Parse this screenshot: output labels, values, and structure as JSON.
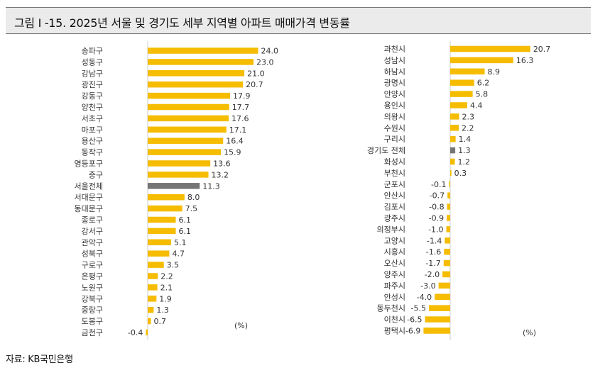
{
  "title": "그림 I -15. 2025년 서울 및 경기도 세부 지역별 아파트 매매가격 변동률",
  "source": "자료: KB국민은행",
  "colors": {
    "bar": "#f5bc00",
    "highlight": "#757575",
    "axis": "#cccccc"
  },
  "chart_data": [
    {
      "type": "bar",
      "orientation": "horizontal",
      "unit": "(%)",
      "highlight": "서울전체",
      "categories": [
        "송파구",
        "성동구",
        "강남구",
        "광진구",
        "강동구",
        "양천구",
        "서초구",
        "마포구",
        "용산구",
        "동작구",
        "영등포구",
        "중구",
        "서울전체",
        "서대문구",
        "동대문구",
        "종로구",
        "강서구",
        "관악구",
        "성북구",
        "구로구",
        "은평구",
        "노원구",
        "강북구",
        "중랑구",
        "도봉구",
        "금천구"
      ],
      "values": [
        24.0,
        23.0,
        21.0,
        20.7,
        17.9,
        17.7,
        17.6,
        17.1,
        16.4,
        15.9,
        13.6,
        13.2,
        11.3,
        8.0,
        7.5,
        6.1,
        6.1,
        5.1,
        4.7,
        3.5,
        2.2,
        2.1,
        1.9,
        1.3,
        0.7,
        -0.4
      ],
      "labels": [
        "24.0",
        "23.0",
        "21.0",
        "20.7",
        "17.9",
        "17.7",
        "17.6",
        "17.1",
        "16.4",
        "15.9",
        "13.6",
        "13.2",
        "11.3",
        "8.0",
        "7.5",
        "6.1",
        "6.1",
        "5.1",
        "4.7",
        "3.5",
        "2.2",
        "2.1",
        "1.9",
        "1.3",
        "0.7",
        "-0.4"
      ]
    },
    {
      "type": "bar",
      "orientation": "horizontal",
      "unit": "(%)",
      "highlight": "경기도 전체",
      "categories": [
        "과천시",
        "성남시",
        "하남시",
        "광명시",
        "안양시",
        "용인시",
        "의왕시",
        "수원시",
        "구리시",
        "경기도 전체",
        "화성시",
        "부천시",
        "군포시",
        "안산시",
        "김포시",
        "광주시",
        "의정부시",
        "고양시",
        "시흥시",
        "오산시",
        "양주시",
        "파주시",
        "안성시",
        "동두천시",
        "이천시",
        "평택시"
      ],
      "values": [
        20.7,
        16.3,
        8.9,
        6.2,
        5.8,
        4.4,
        2.3,
        2.2,
        1.4,
        1.3,
        1.2,
        0.3,
        -0.1,
        -0.7,
        -0.8,
        -0.9,
        -1.0,
        -1.4,
        -1.6,
        -1.7,
        -2.0,
        -3.0,
        -4.0,
        -5.5,
        -6.5,
        -6.9
      ],
      "labels": [
        "20.7",
        "16.3",
        "8.9",
        "6.2",
        "5.8",
        "4.4",
        "2.3",
        "2.2",
        "1.4",
        "1.3",
        "1.2",
        "0.3",
        "-0.1",
        "-0.7",
        "-0.8",
        "-0.9",
        "-1.0",
        "-1.4",
        "-1.6",
        "-1.7",
        "-2.0",
        "-3.0",
        "-4.0",
        "-5.5",
        "-6.5",
        "-6.9"
      ]
    }
  ]
}
